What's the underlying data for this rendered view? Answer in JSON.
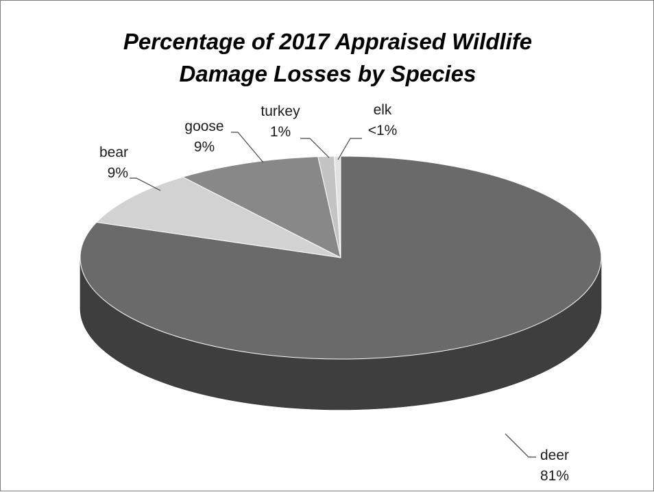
{
  "chart_data": {
    "type": "pie",
    "title": "Percentage of 2017 Appraised Wildlife Damage Losses by Species",
    "title_lines": [
      "Percentage of 2017 Appraised Wildlife",
      "Damage Losses by Species"
    ],
    "slices": [
      {
        "name": "deer",
        "value": 81,
        "label": "81%",
        "color": "#6a6a6a",
        "side_color": "#3e3e3e"
      },
      {
        "name": "bear",
        "value": 9,
        "label": "9%",
        "color": "#d2d2d2",
        "side_color": "#a8a8a8"
      },
      {
        "name": "goose",
        "value": 9,
        "label": "9%",
        "color": "#888888",
        "side_color": "#5e5e5e"
      },
      {
        "name": "turkey",
        "value": 1,
        "label": "1%",
        "color": "#c4c4c4",
        "side_color": "#9a9a9a"
      },
      {
        "name": "elk",
        "value": 0.4,
        "label": "<1%",
        "color": "#e2e2e2",
        "side_color": "#b4b4b4"
      }
    ],
    "style": "3d",
    "legend": "none",
    "data_labels": "category name and percentage"
  }
}
